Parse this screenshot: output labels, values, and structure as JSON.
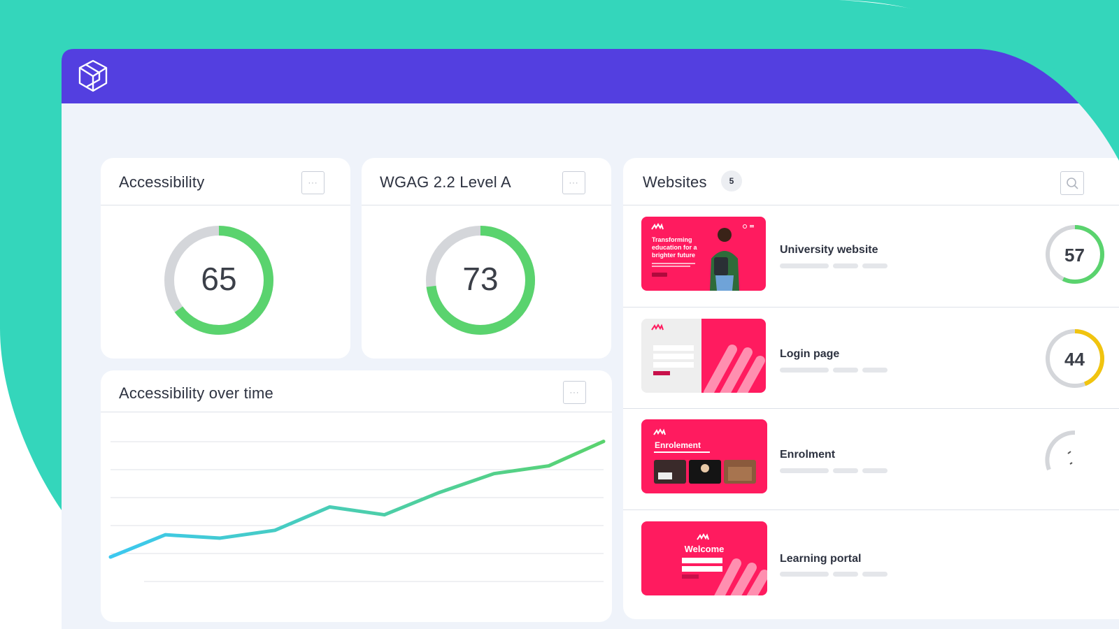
{
  "colors": {
    "brand_teal": "#34d6bb",
    "topbar_purple": "#533fe0",
    "score_green": "#5ad36e",
    "score_yellow": "#f1c40f",
    "track_grey": "#d4d6da",
    "thumb_pink": "#ff1b5f",
    "line_start": "#3cc8f0",
    "line_end": "#5ad36e"
  },
  "app": {
    "logo_icon": "cube-logo-icon"
  },
  "cards": {
    "accessibility": {
      "title": "Accessibility",
      "score": "65",
      "score_fraction": 0.65,
      "more_label": "···"
    },
    "wcag": {
      "title": "WGAG 2.2 Level A",
      "score": "73",
      "score_fraction": 0.73,
      "more_label": "···"
    },
    "over_time": {
      "title": "Accessibility over time",
      "more_label": "···"
    }
  },
  "chart_data": {
    "type": "line",
    "x": [
      1,
      2,
      3,
      4,
      5,
      6,
      7,
      8,
      9,
      10
    ],
    "series": [
      {
        "values": [
          0,
          20,
          17,
          24,
          45,
          38,
          58,
          75,
          82,
          104
        ]
      }
    ],
    "grid": true,
    "xlabel": "",
    "ylabel": ""
  },
  "websites": {
    "title": "Websites",
    "count": "5",
    "search_icon": "search-icon",
    "items": [
      {
        "label": "University website",
        "score": "57",
        "score_fraction": 0.57,
        "score_color": "#5ad36e",
        "thumb": {
          "headline": "Transforming education for a brighter future"
        }
      },
      {
        "label": "Login page",
        "score": "44",
        "score_fraction": 0.44,
        "score_color": "#f1c40f",
        "thumb": {}
      },
      {
        "label": "Enrolment",
        "score": "",
        "score_fraction": 0.0,
        "score_color": "#d4d6da",
        "thumb": {
          "headline": "Enrolement"
        }
      },
      {
        "label": "Learning portal",
        "score": "",
        "score_fraction": 0.0,
        "score_color": "#d4d6da",
        "thumb": {
          "headline": "Welcome"
        }
      }
    ]
  }
}
